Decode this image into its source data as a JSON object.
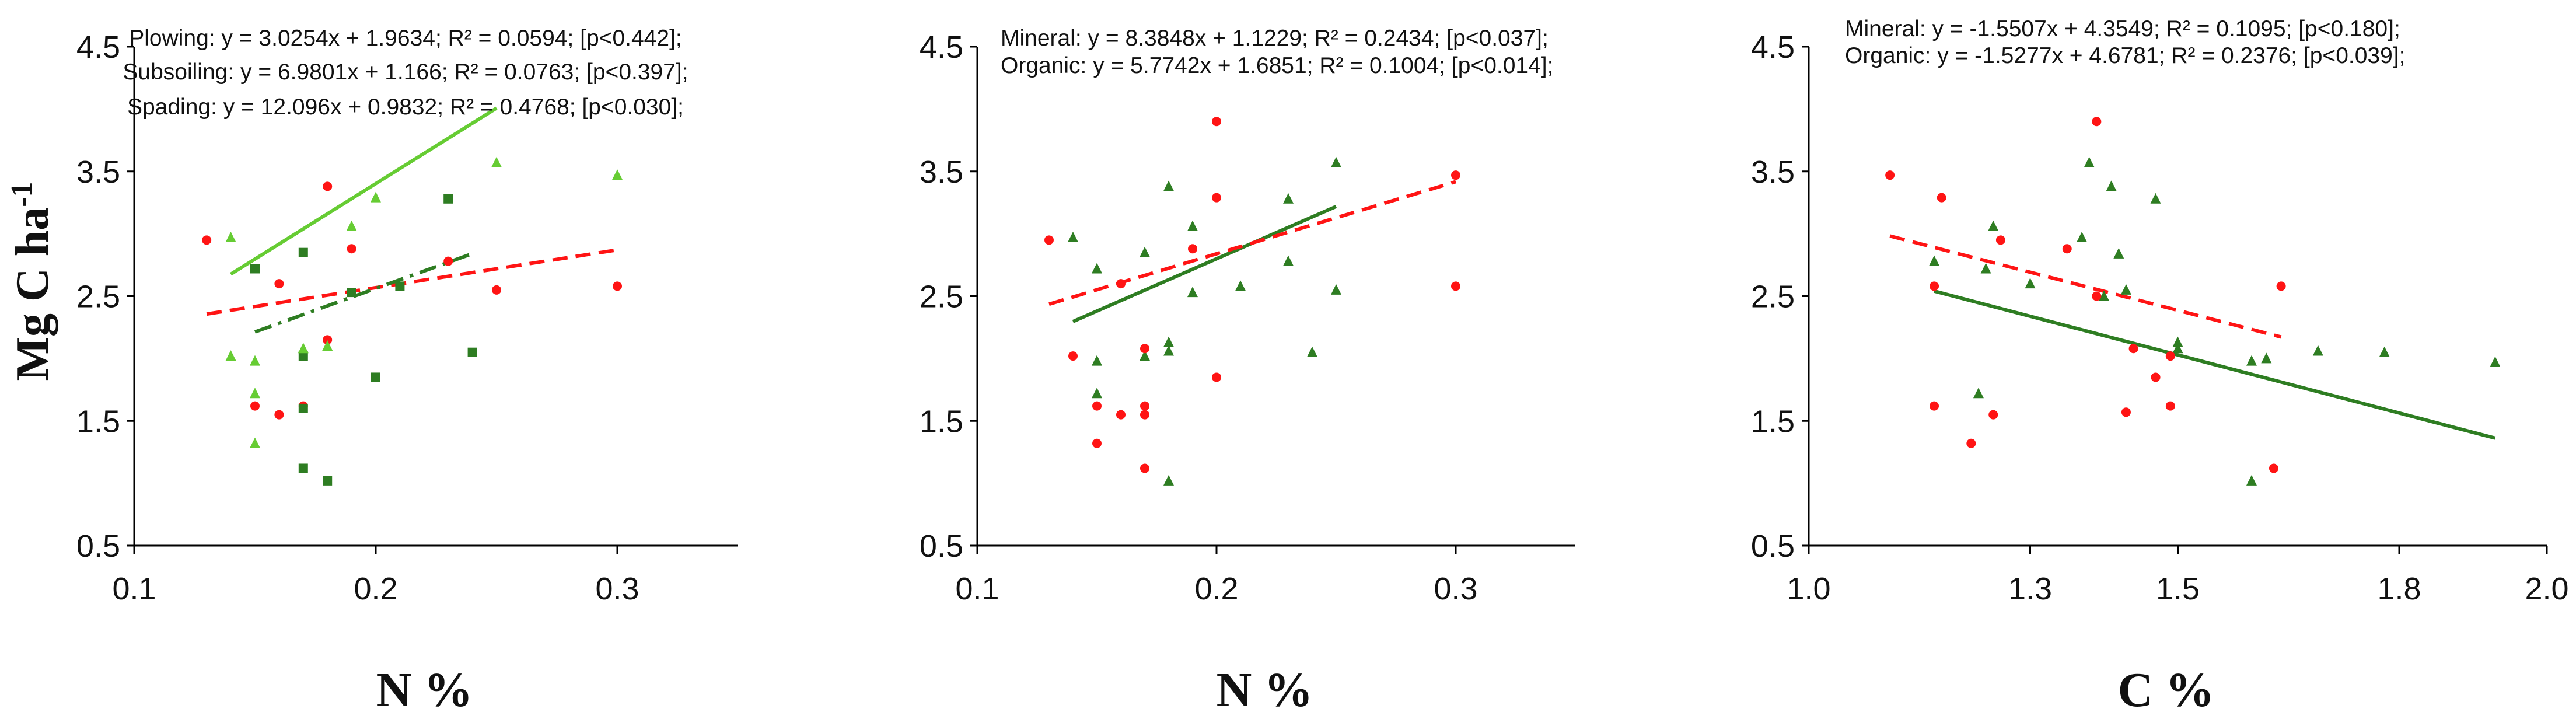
{
  "figure": {
    "ylabel": "Mg C ha-1",
    "ylabel_main": "Mg C ha",
    "ylabel_sup": "-1"
  },
  "colors": {
    "red": "#ff1414",
    "light_green": "#66cc33",
    "dark_green": "#2e7d22",
    "axis": "#000000"
  },
  "chart_data": [
    {
      "type": "scatter",
      "xlabel": "N %",
      "ylabel": "Mg C ha-1",
      "xlim": [
        0.1,
        0.35
      ],
      "ylim": [
        0.5,
        4.5
      ],
      "xticks": [
        0.1,
        0.2,
        0.3
      ],
      "xtick_labels": [
        "0.1",
        "0.2",
        "0.3"
      ],
      "yticks": [
        0.5,
        1.5,
        2.5,
        3.5,
        4.5
      ],
      "ytick_labels": [
        "0.5",
        "1.5",
        "2.5",
        "3.5",
        "4.5"
      ],
      "series": [
        {
          "name": "Plowing",
          "marker": "circle",
          "color": "#ff1414",
          "points": [
            [
              0.13,
              2.95
            ],
            [
              0.15,
              1.62
            ],
            [
              0.16,
              2.6
            ],
            [
              0.16,
              1.55
            ],
            [
              0.17,
              1.62
            ],
            [
              0.18,
              3.38
            ],
            [
              0.18,
              2.15
            ],
            [
              0.19,
              2.88
            ],
            [
              0.23,
              2.78
            ],
            [
              0.25,
              2.55
            ],
            [
              0.3,
              2.58
            ]
          ]
        },
        {
          "name": "Subsoiling",
          "marker": "square",
          "color": "#2e7d22",
          "points": [
            [
              0.15,
              2.72
            ],
            [
              0.17,
              2.85
            ],
            [
              0.17,
              2.02
            ],
            [
              0.17,
              1.6
            ],
            [
              0.17,
              1.12
            ],
            [
              0.18,
              1.02
            ],
            [
              0.19,
              2.53
            ],
            [
              0.2,
              1.85
            ],
            [
              0.21,
              2.58
            ],
            [
              0.23,
              3.28
            ],
            [
              0.24,
              2.05
            ]
          ]
        },
        {
          "name": "Spading",
          "marker": "triangle",
          "color": "#66cc33",
          "points": [
            [
              0.14,
              2.97
            ],
            [
              0.14,
              2.02
            ],
            [
              0.15,
              1.98
            ],
            [
              0.15,
              1.72
            ],
            [
              0.15,
              1.32
            ],
            [
              0.17,
              2.08
            ],
            [
              0.18,
              2.1
            ],
            [
              0.19,
              3.06
            ],
            [
              0.2,
              3.29
            ],
            [
              0.25,
              3.57
            ],
            [
              0.3,
              3.47
            ]
          ]
        }
      ],
      "trendlines": [
        {
          "name": "Plowing",
          "slope": 3.0254,
          "intercept": 1.9634,
          "x_range": [
            0.13,
            0.3
          ],
          "color": "#ff1414",
          "style": "dashed"
        },
        {
          "name": "Subsoiling",
          "slope": 6.9801,
          "intercept": 1.166,
          "x_range": [
            0.15,
            0.24
          ],
          "color": "#2e7d22",
          "style": "dashdot"
        },
        {
          "name": "Spading",
          "slope": 12.096,
          "intercept": 0.9832,
          "x_range": [
            0.14,
            0.25
          ],
          "color": "#66cc33",
          "style": "solid"
        }
      ],
      "annotations": [
        "Plowing: y = 3.0254x + 1.9634; R² = 0.0594; [p<0.442];",
        "Subsoiling: y = 6.9801x + 1.166; R² = 0.0763; [p<0.397];",
        "Spading: y = 12.096x + 0.9832; R² = 0.4768; [p<0.030];"
      ]
    },
    {
      "type": "scatter",
      "xlabel": "N %",
      "ylabel": "",
      "xlim": [
        0.1,
        0.35
      ],
      "ylim": [
        0.5,
        4.5
      ],
      "xticks": [
        0.1,
        0.2,
        0.3
      ],
      "xtick_labels": [
        "0.1",
        "0.2",
        "0.3"
      ],
      "yticks": [
        0.5,
        1.5,
        2.5,
        3.5,
        4.5
      ],
      "ytick_labels": [
        "0.5",
        "1.5",
        "2.5",
        "3.5",
        "4.5"
      ],
      "series": [
        {
          "name": "Mineral",
          "marker": "triangle",
          "color": "#2e7d22",
          "points": [
            [
              0.14,
              2.97
            ],
            [
              0.15,
              2.72
            ],
            [
              0.15,
              1.98
            ],
            [
              0.15,
              1.72
            ],
            [
              0.17,
              2.85
            ],
            [
              0.17,
              2.02
            ],
            [
              0.18,
              3.38
            ],
            [
              0.18,
              2.13
            ],
            [
              0.18,
              2.06
            ],
            [
              0.18,
              1.02
            ],
            [
              0.19,
              3.06
            ],
            [
              0.19,
              2.53
            ],
            [
              0.21,
              2.58
            ],
            [
              0.23,
              3.28
            ],
            [
              0.23,
              2.78
            ],
            [
              0.24,
              2.05
            ],
            [
              0.25,
              3.57
            ],
            [
              0.25,
              2.55
            ]
          ]
        },
        {
          "name": "Organic",
          "marker": "circle",
          "color": "#ff1414",
          "points": [
            [
              0.13,
              2.95
            ],
            [
              0.14,
              2.02
            ],
            [
              0.15,
              1.62
            ],
            [
              0.15,
              1.32
            ],
            [
              0.16,
              2.6
            ],
            [
              0.16,
              1.55
            ],
            [
              0.17,
              2.08
            ],
            [
              0.17,
              1.62
            ],
            [
              0.17,
              1.55
            ],
            [
              0.17,
              1.12
            ],
            [
              0.19,
              2.88
            ],
            [
              0.2,
              3.9
            ],
            [
              0.2,
              3.29
            ],
            [
              0.2,
              1.85
            ],
            [
              0.3,
              3.47
            ],
            [
              0.3,
              2.58
            ]
          ]
        }
      ],
      "trendlines": [
        {
          "name": "Mineral",
          "slope": 8.3848,
          "intercept": 1.1229,
          "x_range": [
            0.14,
            0.25
          ],
          "color": "#2e7d22",
          "style": "solid"
        },
        {
          "name": "Organic",
          "slope": 5.7742,
          "intercept": 1.6851,
          "x_range": [
            0.13,
            0.3
          ],
          "color": "#ff1414",
          "style": "dashed"
        }
      ],
      "annotations": [
        "Mineral: y = 8.3848x + 1.1229; R² = 0.2434; [p<0.037];",
        "Organic: y = 5.7742x + 1.6851; R² = 0.1004; [p<0.014];"
      ]
    },
    {
      "type": "scatter",
      "xlabel": "C %",
      "ylabel": "",
      "xlim": [
        1.0,
        2.0
      ],
      "ylim": [
        0.5,
        4.5
      ],
      "xticks": [
        1.0,
        1.3,
        1.5,
        1.8,
        2.0
      ],
      "xtick_labels": [
        "1.0",
        "1.3",
        "1.5",
        "1.8",
        "2.0"
      ],
      "yticks": [
        0.5,
        1.5,
        2.5,
        3.5,
        4.5
      ],
      "ytick_labels": [
        "0.5",
        "1.5",
        "2.5",
        "3.5",
        "4.5"
      ],
      "series": [
        {
          "name": "Mineral",
          "marker": "triangle",
          "color": "#2e7d22",
          "points": [
            [
              1.17,
              2.78
            ],
            [
              1.23,
              1.72
            ],
            [
              1.24,
              2.72
            ],
            [
              1.25,
              3.06
            ],
            [
              1.3,
              2.6
            ],
            [
              1.37,
              2.97
            ],
            [
              1.38,
              3.57
            ],
            [
              1.4,
              2.5
            ],
            [
              1.41,
              3.38
            ],
            [
              1.42,
              2.84
            ],
            [
              1.43,
              2.55
            ],
            [
              1.47,
              3.28
            ],
            [
              1.5,
              2.13
            ],
            [
              1.5,
              2.08
            ],
            [
              1.6,
              1.02
            ],
            [
              1.6,
              1.98
            ],
            [
              1.62,
              2.0
            ],
            [
              1.69,
              2.06
            ],
            [
              1.78,
              2.05
            ],
            [
              1.93,
              1.97
            ]
          ]
        },
        {
          "name": "Organic",
          "marker": "circle",
          "color": "#ff1414",
          "points": [
            [
              1.11,
              3.47
            ],
            [
              1.17,
              2.58
            ],
            [
              1.17,
              1.62
            ],
            [
              1.18,
              3.29
            ],
            [
              1.22,
              1.32
            ],
            [
              1.25,
              1.55
            ],
            [
              1.26,
              2.95
            ],
            [
              1.35,
              2.88
            ],
            [
              1.39,
              3.9
            ],
            [
              1.39,
              2.5
            ],
            [
              1.43,
              1.57
            ],
            [
              1.44,
              2.08
            ],
            [
              1.47,
              1.85
            ],
            [
              1.49,
              2.02
            ],
            [
              1.49,
              1.62
            ],
            [
              1.63,
              1.12
            ],
            [
              1.64,
              2.58
            ]
          ]
        }
      ],
      "trendlines": [
        {
          "name": "Mineral",
          "slope": -1.5507,
          "intercept": 4.3549,
          "x_range": [
            1.17,
            1.93
          ],
          "color": "#2e7d22",
          "style": "solid"
        },
        {
          "name": "Organic",
          "slope": -1.5277,
          "intercept": 4.6781,
          "x_range": [
            1.11,
            1.64
          ],
          "color": "#ff1414",
          "style": "dashed"
        }
      ],
      "annotations": [
        "Mineral: y = -1.5507x + 4.3549; R² = 0.1095; [p<0.180];",
        "Organic: y = -1.5277x + 4.6781; R² = 0.2376; [p<0.039];"
      ]
    }
  ]
}
